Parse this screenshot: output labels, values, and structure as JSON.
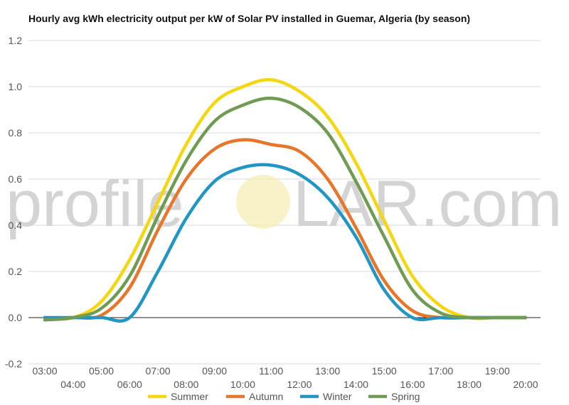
{
  "title": "Hourly avg kWh electricity output per kW of Solar PV installed in Guemar, Algeria (by season)",
  "watermark": {
    "left": "profile",
    "right": "LAR.com"
  },
  "chart_data": {
    "type": "line",
    "title": "Hourly avg kWh electricity output per kW of Solar PV installed in Guemar, Algeria (by season)",
    "xlabel": "",
    "ylabel": "",
    "ylim": [
      -0.2,
      1.2
    ],
    "yticks": [
      -0.2,
      0.0,
      0.2,
      0.4,
      0.6,
      0.8,
      1.0,
      1.2
    ],
    "ytick_labels": [
      "-0.2",
      "0.0",
      "0.2",
      "0.4",
      "0.6",
      "0.8",
      "1.0",
      "1.2"
    ],
    "xlim": [
      3,
      20
    ],
    "x_tick_labels": [
      "03:00",
      "04:00",
      "05:00",
      "06:00",
      "07:00",
      "08:00",
      "09:00",
      "10:00",
      "11:00",
      "12:00",
      "13:00",
      "14:00",
      "15:00",
      "16:00",
      "17:00",
      "18:00",
      "19:00",
      "20:00"
    ],
    "grid": true,
    "legend": "bottom",
    "x": [
      3,
      4,
      5,
      6,
      7,
      8,
      9,
      10,
      11,
      12,
      13,
      14,
      15,
      16,
      17,
      18,
      19,
      20
    ],
    "series": [
      {
        "name": "Summer",
        "color": "#f5d60f",
        "values": [
          0.0,
          0.0,
          0.07,
          0.25,
          0.5,
          0.75,
          0.93,
          1.0,
          1.03,
          0.98,
          0.87,
          0.67,
          0.42,
          0.18,
          0.05,
          0.0,
          0.0,
          0.0
        ]
      },
      {
        "name": "Autumn",
        "color": "#e8762a",
        "values": [
          0.0,
          0.0,
          0.01,
          0.13,
          0.38,
          0.6,
          0.73,
          0.77,
          0.75,
          0.72,
          0.6,
          0.39,
          0.16,
          0.03,
          0.0,
          0.0,
          0.0,
          0.0
        ]
      },
      {
        "name": "Winter",
        "color": "#2196c4",
        "values": [
          0.0,
          0.0,
          0.0,
          0.0,
          0.2,
          0.43,
          0.59,
          0.65,
          0.66,
          0.62,
          0.52,
          0.35,
          0.12,
          0.0,
          0.0,
          0.0,
          0.0,
          0.0
        ]
      },
      {
        "name": "Spring",
        "color": "#6f9b52",
        "values": [
          -0.01,
          0.0,
          0.04,
          0.18,
          0.44,
          0.68,
          0.85,
          0.92,
          0.95,
          0.91,
          0.8,
          0.59,
          0.35,
          0.12,
          0.02,
          0.0,
          0.0,
          0.0
        ]
      }
    ]
  }
}
